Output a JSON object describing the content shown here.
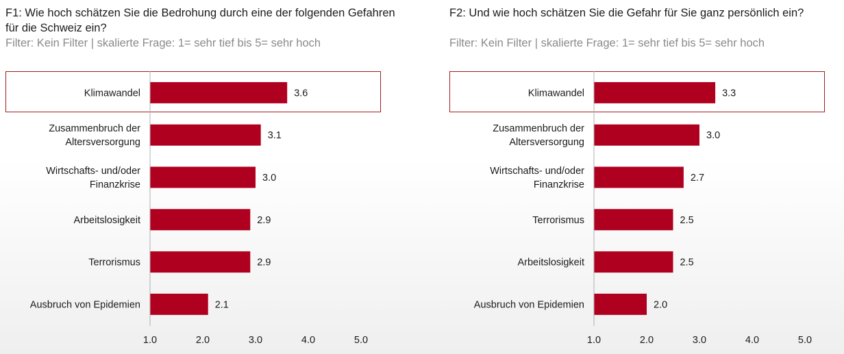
{
  "colors": {
    "bar": "#b00020",
    "highlight_border": "#a01a1f",
    "axis": "#b0b0b0"
  },
  "chart_data": [
    {
      "type": "bar",
      "orientation": "horizontal",
      "title": "F1: Wie hoch schätzen Sie die Bedrohung durch eine der folgenden Gefahren für die Schweiz ein?",
      "subtitle": "Filter: Kein Filter | skalierte Frage: 1= sehr tief bis 5= sehr hoch",
      "categories": [
        "Klimawandel",
        "Zusammenbruch der\nAltersversorgung",
        "Wirtschafts- und/oder\nFinanzkrise",
        "Arbeitslosigkeit",
        "Terrorismus",
        "Ausbruch von Epidemien"
      ],
      "values": [
        3.6,
        3.1,
        3.0,
        2.9,
        2.9,
        2.1
      ],
      "value_labels": [
        "3.6",
        "3.1",
        "3.0",
        "2.9",
        "2.9",
        "2.1"
      ],
      "xlim": [
        1.0,
        5.0
      ],
      "xticks": [
        "1.0",
        "2.0",
        "3.0",
        "4.0",
        "5.0"
      ],
      "highlight": "Klimawandel",
      "grid": false
    },
    {
      "type": "bar",
      "orientation": "horizontal",
      "title": "F2: Und wie hoch schätzen Sie die Gefahr für Sie ganz persönlich ein?",
      "subtitle": "Filter: Kein Filter | skalierte Frage: 1= sehr tief bis 5= sehr hoch",
      "categories": [
        "Klimawandel",
        "Zusammenbruch der\nAltersversorgung",
        "Wirtschafts- und/oder\nFinanzkrise",
        "Terrorismus",
        "Arbeitslosigkeit",
        "Ausbruch von Epidemien"
      ],
      "values": [
        3.3,
        3.0,
        2.7,
        2.5,
        2.5,
        2.0
      ],
      "value_labels": [
        "3.3",
        "3.0",
        "2.7",
        "2.5",
        "2.5",
        "2.0"
      ],
      "xlim": [
        1.0,
        5.0
      ],
      "xticks": [
        "1.0",
        "2.0",
        "3.0",
        "4.0",
        "5.0"
      ],
      "highlight": "Klimawandel",
      "grid": false
    }
  ]
}
